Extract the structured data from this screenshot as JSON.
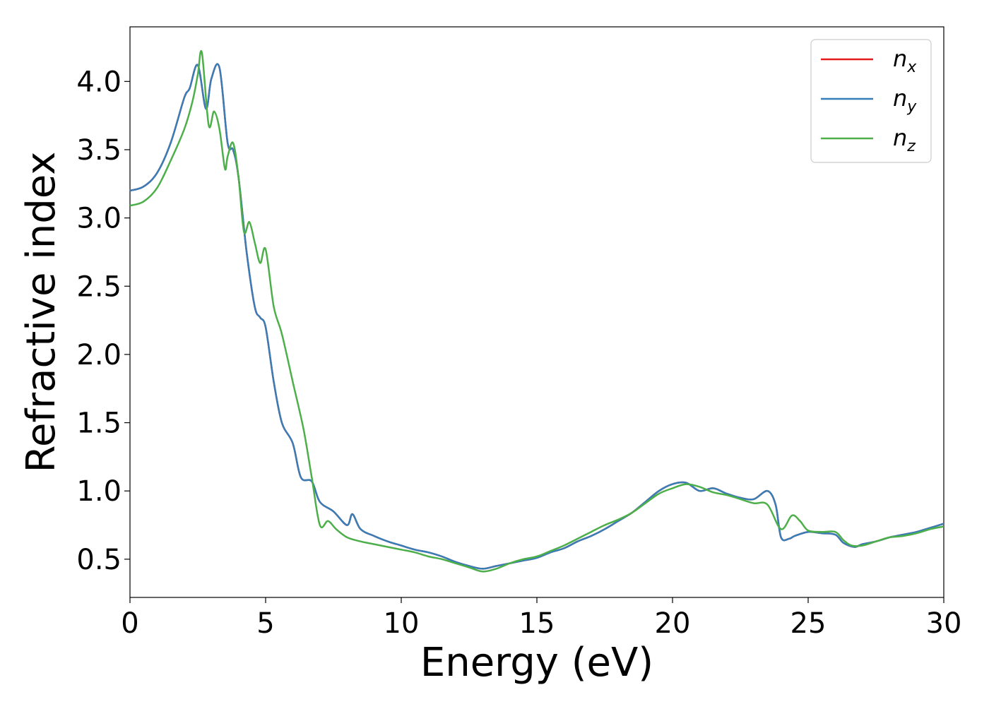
{
  "chart_data": {
    "type": "line",
    "title": "",
    "xlabel": "Energy (eV)",
    "ylabel": "Refractive index",
    "xlim": [
      0,
      30
    ],
    "ylim": [
      0.22,
      4.4
    ],
    "x_ticks": [
      0,
      5,
      10,
      15,
      20,
      25,
      30
    ],
    "x_tick_labels": [
      "0",
      "5",
      "10",
      "15",
      "20",
      "25",
      "30"
    ],
    "y_ticks": [
      0.5,
      1.0,
      1.5,
      2.0,
      2.5,
      3.0,
      3.5,
      4.0
    ],
    "y_tick_labels": [
      "0.5",
      "1.0",
      "1.5",
      "2.0",
      "2.5",
      "3.0",
      "3.5",
      "4.0"
    ],
    "grid": false,
    "legend_position": "top-right",
    "series": [
      {
        "name": "n_x",
        "label_base": "n",
        "label_sub": "x",
        "color": "#e41a1c",
        "x": [
          0,
          0.5,
          1.0,
          1.5,
          2.0,
          2.2,
          2.5,
          2.8,
          3.0,
          3.3,
          3.6,
          3.8,
          4.0,
          4.3,
          4.6,
          4.8,
          5.0,
          5.3,
          5.6,
          6.0,
          6.3,
          6.7,
          7.0,
          7.5,
          8.0,
          8.2,
          8.5,
          9.0,
          9.5,
          10.0,
          10.5,
          11.0,
          11.5,
          12.0,
          12.5,
          13.0,
          13.5,
          14.0,
          14.5,
          15.0,
          15.5,
          16.0,
          16.5,
          17.0,
          17.5,
          18.0,
          18.5,
          19.0,
          19.5,
          20.0,
          20.5,
          21.0,
          21.5,
          22.0,
          22.5,
          23.0,
          23.5,
          23.8,
          24.0,
          24.3,
          24.5,
          25.0,
          25.5,
          26.0,
          26.3,
          26.7,
          27.0,
          27.5,
          28.0,
          28.5,
          29.0,
          29.5,
          30.0
        ],
        "y": [
          3.2,
          3.23,
          3.33,
          3.55,
          3.88,
          3.95,
          4.12,
          3.8,
          4.02,
          4.1,
          3.55,
          3.5,
          3.3,
          2.75,
          2.35,
          2.27,
          2.2,
          1.8,
          1.5,
          1.35,
          1.1,
          1.07,
          0.92,
          0.85,
          0.75,
          0.83,
          0.72,
          0.67,
          0.63,
          0.6,
          0.57,
          0.55,
          0.52,
          0.48,
          0.45,
          0.43,
          0.45,
          0.47,
          0.49,
          0.51,
          0.55,
          0.58,
          0.63,
          0.67,
          0.72,
          0.78,
          0.84,
          0.92,
          1.0,
          1.05,
          1.06,
          1.0,
          1.02,
          0.98,
          0.95,
          0.94,
          1.0,
          0.9,
          0.66,
          0.65,
          0.67,
          0.7,
          0.69,
          0.68,
          0.62,
          0.59,
          0.61,
          0.63,
          0.66,
          0.68,
          0.7,
          0.73,
          0.76
        ]
      },
      {
        "name": "n_y",
        "label_base": "n",
        "label_sub": "y",
        "color": "#377eb8",
        "x": [
          0,
          0.5,
          1.0,
          1.5,
          2.0,
          2.2,
          2.5,
          2.8,
          3.0,
          3.3,
          3.6,
          3.8,
          4.0,
          4.3,
          4.6,
          4.8,
          5.0,
          5.3,
          5.6,
          6.0,
          6.3,
          6.7,
          7.0,
          7.5,
          8.0,
          8.2,
          8.5,
          9.0,
          9.5,
          10.0,
          10.5,
          11.0,
          11.5,
          12.0,
          12.5,
          13.0,
          13.5,
          14.0,
          14.5,
          15.0,
          15.5,
          16.0,
          16.5,
          17.0,
          17.5,
          18.0,
          18.5,
          19.0,
          19.5,
          20.0,
          20.5,
          21.0,
          21.5,
          22.0,
          22.5,
          23.0,
          23.5,
          23.8,
          24.0,
          24.3,
          24.5,
          25.0,
          25.5,
          26.0,
          26.3,
          26.7,
          27.0,
          27.5,
          28.0,
          28.5,
          29.0,
          29.5,
          30.0
        ],
        "y": [
          3.2,
          3.23,
          3.33,
          3.55,
          3.88,
          3.95,
          4.12,
          3.8,
          4.02,
          4.1,
          3.55,
          3.5,
          3.3,
          2.75,
          2.35,
          2.27,
          2.2,
          1.8,
          1.5,
          1.35,
          1.1,
          1.07,
          0.92,
          0.85,
          0.75,
          0.83,
          0.72,
          0.67,
          0.63,
          0.6,
          0.57,
          0.55,
          0.52,
          0.48,
          0.45,
          0.43,
          0.45,
          0.47,
          0.49,
          0.51,
          0.55,
          0.58,
          0.63,
          0.67,
          0.72,
          0.78,
          0.84,
          0.92,
          1.0,
          1.05,
          1.06,
          1.0,
          1.02,
          0.98,
          0.95,
          0.94,
          1.0,
          0.9,
          0.66,
          0.65,
          0.67,
          0.7,
          0.69,
          0.68,
          0.62,
          0.59,
          0.61,
          0.63,
          0.66,
          0.68,
          0.7,
          0.73,
          0.76
        ]
      },
      {
        "name": "n_z",
        "label_base": "n",
        "label_sub": "z",
        "color": "#4daf4a",
        "x": [
          0,
          0.5,
          1.0,
          1.5,
          2.0,
          2.3,
          2.5,
          2.65,
          2.9,
          3.1,
          3.3,
          3.5,
          3.6,
          3.8,
          4.0,
          4.2,
          4.4,
          4.6,
          4.8,
          5.0,
          5.3,
          5.6,
          6.0,
          6.4,
          6.7,
          7.0,
          7.3,
          7.6,
          8.0,
          8.5,
          9.0,
          9.5,
          10.0,
          10.5,
          11.0,
          11.5,
          12.0,
          12.5,
          13.0,
          13.5,
          14.0,
          14.5,
          15.0,
          15.5,
          16.0,
          16.5,
          17.0,
          17.5,
          18.0,
          18.5,
          19.0,
          19.5,
          20.0,
          20.5,
          21.0,
          21.5,
          22.0,
          22.5,
          23.0,
          23.5,
          24.0,
          24.4,
          24.7,
          25.0,
          25.5,
          26.0,
          26.3,
          26.6,
          27.0,
          27.5,
          28.0,
          28.5,
          29.0,
          29.5,
          30.0
        ],
        "y": [
          3.09,
          3.12,
          3.22,
          3.42,
          3.65,
          3.85,
          4.05,
          4.21,
          3.68,
          3.78,
          3.65,
          3.36,
          3.45,
          3.55,
          3.3,
          2.9,
          2.97,
          2.82,
          2.67,
          2.77,
          2.35,
          2.15,
          1.8,
          1.45,
          1.1,
          0.75,
          0.78,
          0.72,
          0.66,
          0.63,
          0.61,
          0.59,
          0.57,
          0.55,
          0.52,
          0.5,
          0.47,
          0.44,
          0.41,
          0.43,
          0.47,
          0.5,
          0.52,
          0.56,
          0.6,
          0.65,
          0.7,
          0.75,
          0.79,
          0.84,
          0.91,
          0.98,
          1.02,
          1.05,
          1.03,
          0.99,
          0.97,
          0.94,
          0.91,
          0.9,
          0.72,
          0.82,
          0.78,
          0.71,
          0.7,
          0.7,
          0.64,
          0.6,
          0.6,
          0.63,
          0.66,
          0.67,
          0.69,
          0.72,
          0.74
        ]
      }
    ]
  }
}
